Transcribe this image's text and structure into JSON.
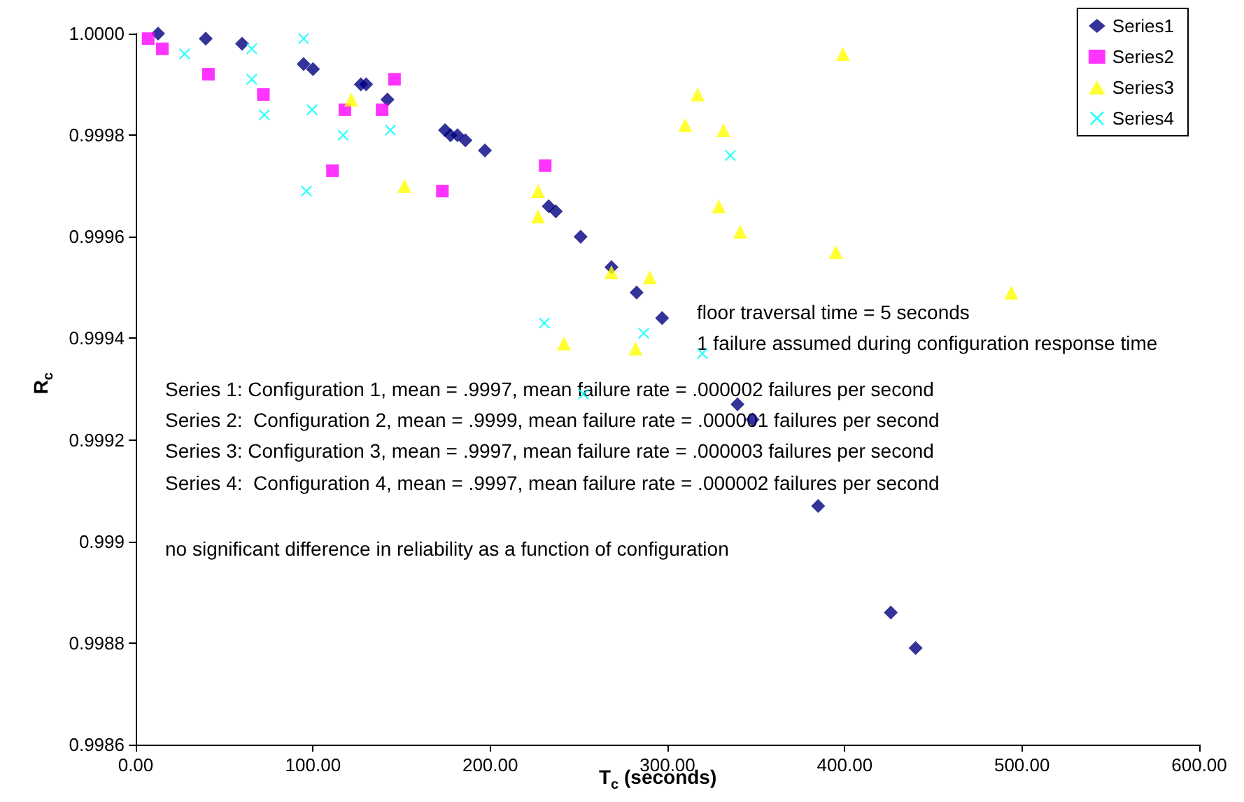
{
  "chart_data": {
    "type": "scatter",
    "xlabel": "T$_{c}$ (seconds)",
    "ylabel": "R$_{c}$",
    "xlim": [
      0,
      600
    ],
    "xticks": [
      {
        "value": 0,
        "label": "0.00"
      },
      {
        "value": 100,
        "label": "100.00"
      },
      {
        "value": 200,
        "label": "200.00"
      },
      {
        "value": 300,
        "label": "300.00"
      },
      {
        "value": 400,
        "label": "400.00"
      },
      {
        "value": 500,
        "label": "500.00"
      },
      {
        "value": 600,
        "label": "600.00"
      }
    ],
    "ylim": [
      0.9986,
      1.0
    ],
    "yticks": [
      0.9986,
      0.9988,
      0.999,
      {
        "value": 0.9992,
        "label": "0.9992"
      },
      0.9994,
      0.9996,
      0.9998,
      {
        "value": 1.0,
        "label": "1.0000"
      }
    ],
    "grid": false,
    "legend": "top right",
    "annotations": [
      "floor traversal time = 5 seconds",
      "1 failure assumed during configuration response time",
      "Series 1: Configuration 1, mean = .9997, mean failure rate = .000002 failures per second",
      "Series 2:  Configuration 2, mean = .9999, mean failure rate = .000001 failures per second",
      "Series 3: Configuration 3, mean = .9997, mean failure rate = .000003 failures per second",
      "Series 4:  Configuration 4, mean = .9997, mean failure rate = .000002 failures per second",
      "no significant difference in reliability as a function of configuration"
    ],
    "series": [
      {
        "name": "Series1",
        "color": "#000080",
        "marker": "diamond",
        "x": [
          12.6,
          39.5,
          60,
          94.7,
          100,
          127,
          130,
          142,
          174.5,
          177.6,
          181.5,
          186,
          197,
          233,
          237,
          251,
          268.4,
          282.6,
          297,
          339.5,
          348,
          385,
          426,
          440
        ],
        "values": [
          1.0,
          0.99999,
          0.99998,
          0.99994,
          0.99993,
          0.9999,
          0.9999,
          0.99987,
          0.99981,
          0.9998,
          0.9998,
          0.99979,
          0.99977,
          0.99966,
          0.99965,
          0.9996,
          0.99954,
          0.99949,
          0.99944,
          0.99927,
          0.99924,
          0.99907,
          0.99886,
          0.99879
        ]
      },
      {
        "name": "Series2",
        "color": "#ff00ff",
        "marker": "square",
        "x": [
          7,
          15,
          41,
          72,
          118,
          139,
          146,
          111,
          173,
          231
        ],
        "values": [
          0.99999,
          0.99997,
          0.99992,
          0.99988,
          0.99985,
          0.99985,
          0.99991,
          0.99973,
          0.99969,
          0.99974
        ]
      },
      {
        "name": "Series3",
        "color": "#ffff00",
        "marker": "triangle",
        "x": [
          121.6,
          151.6,
          227,
          227,
          241.6,
          268.4,
          282,
          290,
          310,
          317,
          329,
          331.6,
          341,
          395,
          399,
          494
        ],
        "values": [
          0.99987,
          0.9997,
          0.99969,
          0.99964,
          0.99939,
          0.99953,
          0.99938,
          0.99952,
          0.99982,
          0.99988,
          0.99966,
          0.99981,
          0.99961,
          0.99957,
          0.99996,
          0.99949
        ]
      },
      {
        "name": "Series4",
        "color": "#00ffff",
        "marker": "cross",
        "x": [
          27.6,
          65.5,
          65.5,
          72.6,
          94.7,
          99.5,
          117,
          96.3,
          143.7,
          335.5,
          230.5,
          286.6,
          319.7,
          252.6
        ],
        "values": [
          0.99996,
          0.99997,
          0.99991,
          0.99984,
          0.99999,
          0.99985,
          0.9998,
          0.99969,
          0.99981,
          0.99976,
          0.99943,
          0.99941,
          0.99937,
          0.99929
        ]
      }
    ]
  }
}
